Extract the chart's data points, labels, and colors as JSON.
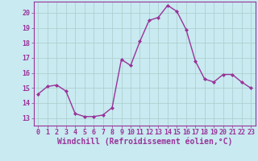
{
  "x": [
    0,
    1,
    2,
    3,
    4,
    5,
    6,
    7,
    8,
    9,
    10,
    11,
    12,
    13,
    14,
    15,
    16,
    17,
    18,
    19,
    20,
    21,
    22,
    23
  ],
  "y": [
    14.6,
    15.1,
    15.2,
    14.8,
    13.3,
    13.1,
    13.1,
    13.2,
    13.7,
    16.9,
    16.5,
    18.1,
    19.5,
    19.7,
    20.5,
    20.1,
    18.9,
    16.8,
    15.6,
    15.4,
    15.9,
    15.9,
    15.4,
    15.0
  ],
  "line_color": "#993399",
  "marker": "D",
  "marker_size": 2.0,
  "line_width": 1.0,
  "ylim": [
    12.5,
    20.75
  ],
  "yticks": [
    13,
    14,
    15,
    16,
    17,
    18,
    19,
    20
  ],
  "xticks": [
    0,
    1,
    2,
    3,
    4,
    5,
    6,
    7,
    8,
    9,
    10,
    11,
    12,
    13,
    14,
    15,
    16,
    17,
    18,
    19,
    20,
    21,
    22,
    23
  ],
  "xlabel": "Windchill (Refroidissement éolien,°C)",
  "background_color": "#c8eaf0",
  "grid_color": "#aacccc",
  "text_color": "#993399",
  "xlabel_fontsize": 7.0,
  "tick_fontsize": 6.0,
  "figsize": [
    3.2,
    2.0
  ],
  "dpi": 100
}
